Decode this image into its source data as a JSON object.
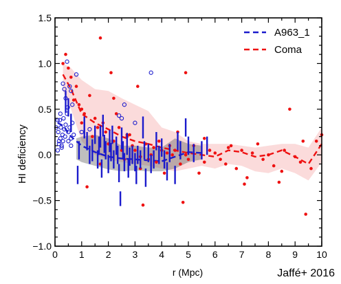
{
  "chart_data": {
    "type": "scatter",
    "title": "",
    "xlabel": "r (Mpc)",
    "ylabel": "HI deficiency",
    "xlim": [
      0,
      10
    ],
    "ylim": [
      -1.0,
      1.5
    ],
    "xticks": [
      "0",
      "1",
      "2",
      "3",
      "4",
      "5",
      "6",
      "7",
      "8",
      "9",
      "10"
    ],
    "yticks": [
      "1.5",
      "1.0",
      "0.5",
      "0.0",
      "−0.5",
      "−1.0"
    ],
    "grid": false,
    "legend_position": "top-right",
    "annotation": "Jaffé+ 2016",
    "series": [
      {
        "name": "A963_1",
        "color": "#1a1acc",
        "line_style": "dashed",
        "trend": {
          "x": [
            0.1,
            0.3,
            0.6,
            1.0,
            1.5,
            2.0,
            2.5,
            3.0,
            3.5,
            4.0,
            4.5,
            5.0,
            5.5
          ],
          "y": [
            0.35,
            0.32,
            0.2,
            0.1,
            0.03,
            -0.02,
            -0.04,
            -0.05,
            -0.06,
            -0.07,
            -0.02,
            0.03,
            0.02
          ]
        },
        "band": {
          "x": [
            0.8,
            1.0,
            1.5,
            2.0,
            2.5,
            3.0,
            3.5,
            4.0,
            4.5,
            5.0,
            5.5
          ],
          "upper": [
            0.18,
            0.2,
            0.22,
            0.18,
            0.1,
            0.1,
            0.08,
            0.08,
            0.18,
            0.12,
            0.1
          ],
          "lower": [
            -0.05,
            -0.08,
            -0.12,
            -0.16,
            -0.18,
            -0.17,
            -0.18,
            -0.18,
            -0.15,
            -0.08,
            -0.05
          ]
        },
        "open_points": {
          "x": [
            0.05,
            0.1,
            0.12,
            0.15,
            0.18,
            0.2,
            0.22,
            0.25,
            0.28,
            0.3,
            0.32,
            0.35,
            0.38,
            0.4,
            0.45,
            0.48,
            0.5,
            0.55,
            0.6,
            0.65,
            0.7,
            0.3,
            0.35,
            0.4,
            0.45,
            0.55,
            0.6,
            0.65,
            0.8,
            1.0,
            1.3,
            2.4,
            2.5,
            2.6,
            3.0,
            3.6,
            0.1,
            0.15,
            0.2,
            0.25,
            0.5,
            0.6
          ],
          "y": [
            0.3,
            0.38,
            0.25,
            0.15,
            0.38,
            0.45,
            0.3,
            0.1,
            0.22,
            0.15,
            0.4,
            0.28,
            0.2,
            0.33,
            0.45,
            0.52,
            0.25,
            0.3,
            0.18,
            0.35,
            0.22,
            0.78,
            0.72,
            0.62,
            1.02,
            0.75,
            0.7,
            0.55,
            0.88,
            0.25,
            0.28,
            0.43,
            0.4,
            0.55,
            0.35,
            0.9,
            0.05,
            0.12,
            0.18,
            0.08,
            0.15,
            0.1
          ]
        },
        "error_points": {
          "x": [
            0.4,
            0.5,
            0.6,
            0.85,
            0.9,
            1.1,
            1.2,
            1.3,
            1.4,
            1.5,
            1.6,
            1.65,
            1.7,
            1.75,
            1.8,
            1.85,
            1.9,
            2.0,
            2.05,
            2.1,
            2.15,
            2.2,
            2.3,
            2.35,
            2.4,
            2.45,
            2.5,
            2.55,
            2.6,
            2.7,
            2.75,
            2.8,
            2.9,
            3.0,
            3.05,
            3.1,
            3.2,
            3.3,
            3.35,
            3.4,
            3.5,
            3.6,
            3.7,
            3.8,
            3.9,
            4.0,
            4.1,
            4.2,
            4.3,
            4.5,
            4.6,
            4.7,
            4.9,
            5.0,
            5.2,
            5.5,
            5.7
          ],
          "y": [
            0.58,
            0.52,
            0.35,
            -0.22,
            0.05,
            0.3,
            0.15,
            0.0,
            0.05,
            0.22,
            -0.05,
            0.1,
            0.2,
            -0.15,
            0.32,
            0.12,
            0.05,
            -0.1,
            0.15,
            0.03,
            0.22,
            -0.05,
            0.1,
            0.0,
            -0.2,
            -0.48,
            0.18,
            0.05,
            -0.08,
            0.12,
            -0.15,
            -0.02,
            0.0,
            -0.08,
            -0.22,
            0.0,
            -0.05,
            0.3,
            0.05,
            -0.25,
            0.02,
            -0.1,
            -0.05,
            0.15,
            0.0,
            0.08,
            -0.05,
            -0.18,
            0.02,
            -0.22,
            0.15,
            0.05,
            0.3,
            0.1,
            0.02,
            0.05,
            0.1
          ],
          "err": [
            0.12,
            0.1,
            0.1,
            0.1,
            0.1,
            0.12,
            0.1,
            0.1,
            0.12,
            0.1,
            0.1,
            0.1,
            0.12,
            0.1,
            0.12,
            0.1,
            0.1,
            0.1,
            0.12,
            0.1,
            0.1,
            0.1,
            0.1,
            0.1,
            0.1,
            0.08,
            0.12,
            0.1,
            0.1,
            0.12,
            0.1,
            0.1,
            0.1,
            0.1,
            0.1,
            0.1,
            0.1,
            0.12,
            0.1,
            0.1,
            0.1,
            0.1,
            0.1,
            0.1,
            0.1,
            0.1,
            0.1,
            0.1,
            0.1,
            0.1,
            0.1,
            0.1,
            0.1,
            0.1,
            0.1,
            0.1,
            0.1
          ]
        }
      },
      {
        "name": "Coma",
        "color": "#ee1111",
        "line_style": "dashed",
        "trend": {
          "x": [
            0.3,
            0.6,
            1.0,
            1.5,
            2.0,
            2.5,
            3.0,
            3.5,
            4.0,
            4.5,
            5.0,
            5.5,
            6.0,
            6.5,
            7.0,
            7.5,
            8.0,
            8.5,
            9.0,
            9.5,
            10.0
          ],
          "y": [
            0.88,
            0.72,
            0.45,
            0.35,
            0.28,
            0.2,
            0.15,
            0.12,
            0.08,
            0.05,
            0.02,
            0.0,
            -0.02,
            0.05,
            0.03,
            -0.02,
            0.0,
            0.05,
            -0.02,
            -0.1,
            0.12
          ]
        },
        "band": {
          "x": [
            0.3,
            0.6,
            1.0,
            1.5,
            2.0,
            2.5,
            3.0,
            3.5,
            4.0,
            4.5,
            5.0,
            5.5,
            6.0,
            6.5,
            7.0,
            7.5,
            8.0,
            8.5,
            9.0,
            9.5,
            10.0
          ],
          "upper": [
            1.0,
            0.95,
            0.82,
            0.72,
            0.7,
            0.62,
            0.55,
            0.48,
            0.3,
            0.25,
            0.15,
            0.12,
            0.12,
            0.12,
            0.1,
            0.08,
            0.1,
            0.12,
            0.12,
            0.08,
            0.3
          ],
          "lower": [
            0.7,
            0.5,
            0.15,
            0.0,
            -0.05,
            -0.08,
            -0.1,
            -0.12,
            -0.15,
            -0.18,
            -0.15,
            -0.12,
            -0.15,
            -0.1,
            -0.12,
            -0.18,
            -0.2,
            -0.15,
            -0.2,
            -0.28,
            -0.08
          ]
        },
        "points": {
          "x": [
            0.3,
            0.4,
            0.5,
            0.6,
            0.7,
            0.8,
            0.9,
            1.0,
            1.1,
            1.2,
            1.3,
            1.4,
            1.5,
            1.6,
            1.7,
            1.8,
            1.9,
            2.0,
            2.1,
            2.2,
            2.3,
            2.4,
            2.5,
            2.6,
            2.7,
            2.8,
            2.9,
            3.0,
            3.1,
            3.2,
            3.3,
            3.4,
            3.5,
            3.6,
            3.7,
            3.8,
            3.9,
            4.0,
            4.1,
            4.2,
            4.3,
            4.4,
            4.5,
            4.6,
            4.7,
            4.8,
            4.9,
            5.0,
            5.2,
            5.4,
            5.6,
            5.8,
            6.0,
            6.2,
            6.4,
            6.6,
            6.8,
            7.0,
            7.2,
            7.4,
            7.6,
            7.8,
            8.0,
            8.2,
            8.4,
            8.6,
            8.8,
            9.0,
            9.2,
            9.4,
            9.6,
            9.8,
            10.0,
            1.7,
            2.2,
            3.2,
            4.9,
            9.3,
            1.0,
            2.7,
            6.5,
            8.5,
            7.1,
            5.6
          ],
          "y": [
            1.0,
            1.1,
            0.95,
            0.85,
            0.6,
            0.75,
            0.55,
            0.5,
            0.45,
            -0.35,
            0.65,
            0.2,
            0.4,
            0.3,
            -0.1,
            0.35,
            0.25,
            0.12,
            0.9,
            0.15,
            0.45,
            0.3,
            0.05,
            -0.05,
            0.2,
            0.22,
            0.1,
            0.05,
            0.75,
            -0.15,
            -0.55,
            0.12,
            -0.05,
            0.0,
            0.08,
            -0.08,
            0.15,
            0.05,
            -0.2,
            0.02,
            0.1,
            0.0,
            0.05,
            0.25,
            -0.1,
            -0.52,
            0.0,
            -0.05,
            0.1,
            -0.2,
            -0.08,
            0.05,
            0.02,
            -0.05,
            -0.1,
            0.1,
            -0.15,
            0.05,
            -0.25,
            0.02,
            0.12,
            -0.05,
            0.0,
            -0.12,
            -0.3,
            0.05,
            0.5,
            -0.02,
            -0.08,
            -0.65,
            -0.15,
            0.15,
            0.22,
            1.28,
            0.62,
            -0.02,
            0.9,
            0.15,
            0.35,
            0.22,
            0.08,
            -0.18,
            -0.32,
            0.18
          ]
        }
      }
    ]
  }
}
